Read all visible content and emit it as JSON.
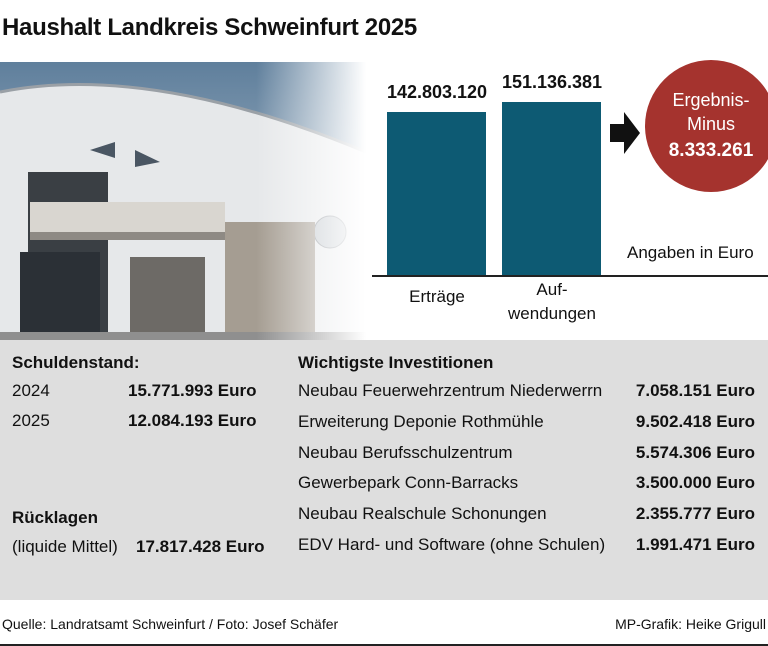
{
  "title": "Haushalt Landkreis Schweinfurt 2025",
  "chart_data": {
    "type": "bar",
    "categories": [
      "Erträge",
      "Auf-\nwendungen"
    ],
    "values": [
      142803120,
      151136381
    ],
    "value_labels": [
      "142.803.120",
      "151.136.381"
    ],
    "color": "#0d5a73"
  },
  "result": {
    "label": "Ergebnis-\nMinus",
    "value": "8.333.261",
    "color": "#a5332e"
  },
  "unit_note": "Angaben in Euro",
  "debt": {
    "title": "Schuldenstand:",
    "rows": [
      [
        "2024",
        "15.771.993 Euro"
      ],
      [
        "2025",
        "12.084.193 Euro"
      ]
    ]
  },
  "reserves": {
    "title": "Rücklagen",
    "label": "(liquide Mittel)",
    "value": "17.817.428 Euro"
  },
  "investments": {
    "title": "Wichtigste Investitionen",
    "rows": [
      [
        "Neubau Feuerwehrzentrum Niederwerrn",
        "7.058.151 Euro"
      ],
      [
        "Erweiterung Deponie Rothmühle",
        "9.502.418 Euro"
      ],
      [
        "Neubau Berufsschulzentrum",
        "5.574.306 Euro"
      ],
      [
        "Gewerbepark Conn-Barracks",
        "3.500.000 Euro"
      ],
      [
        "Neubau Realschule Schonungen",
        "2.355.777 Euro"
      ],
      [
        "EDV Hard- und Software (ohne Schulen)",
        "1.991.471 Euro"
      ]
    ]
  },
  "footer": {
    "source": "Quelle: Landratsamt Schweinfurt / Foto: Josef Schäfer",
    "credit": "MP-Grafik: Heike Grigull"
  }
}
